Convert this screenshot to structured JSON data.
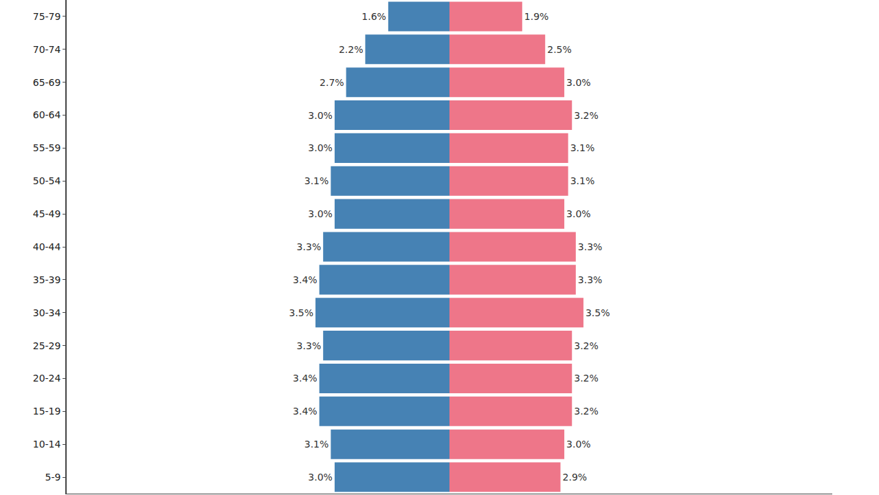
{
  "chart_data": {
    "type": "bar",
    "orientation": "horizontal",
    "categories": [
      "5-9",
      "10-14",
      "15-19",
      "20-24",
      "25-29",
      "30-34",
      "35-39",
      "40-44",
      "45-49",
      "50-54",
      "55-59",
      "60-64",
      "65-69",
      "70-74",
      "75-79"
    ],
    "series": [
      {
        "color": "#4682b4",
        "values": [
          3.0,
          3.1,
          3.4,
          3.4,
          3.3,
          3.5,
          3.4,
          3.3,
          3.0,
          3.1,
          3.0,
          3.0,
          2.7,
          2.2,
          1.6
        ],
        "value_labels": [
          "3.0%",
          "3.1%",
          "3.4%",
          "3.4%",
          "3.3%",
          "3.5%",
          "3.4%",
          "3.3%",
          "3.0%",
          "3.1%",
          "3.0%",
          "3.0%",
          "2.7%",
          "2.2%",
          "1.6%"
        ]
      },
      {
        "color": "#ee7689",
        "values": [
          2.9,
          3.0,
          3.2,
          3.2,
          3.2,
          3.5,
          3.3,
          3.3,
          3.0,
          3.1,
          3.1,
          3.2,
          3.0,
          2.5,
          1.9
        ],
        "value_labels": [
          "2.9%",
          "3.0%",
          "3.2%",
          "3.2%",
          "3.2%",
          "3.5%",
          "3.3%",
          "3.3%",
          "3.0%",
          "3.1%",
          "3.1%",
          "3.2%",
          "3.0%",
          "2.5%",
          "1.9%"
        ]
      }
    ],
    "xlim": [
      0,
      10
    ],
    "data_labels": true,
    "tick_labels": "y",
    "grid": false
  }
}
